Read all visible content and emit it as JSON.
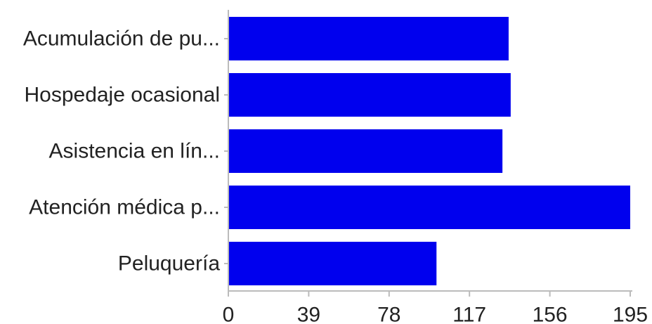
{
  "chart_data": {
    "type": "bar",
    "orientation": "horizontal",
    "categories": [
      "Acumulación de pu...",
      "Hospedaje ocasional",
      "Asistencia en lín...",
      "Atención médica p...",
      "Peluquería"
    ],
    "values": [
      136,
      137,
      133,
      195,
      101
    ],
    "xlim": [
      0,
      195
    ],
    "xticks": [
      "0",
      "39",
      "78",
      "117",
      "156",
      "195"
    ],
    "grid": false,
    "bar_color": "#0000ee",
    "axis_color": "#bbbbbb"
  }
}
